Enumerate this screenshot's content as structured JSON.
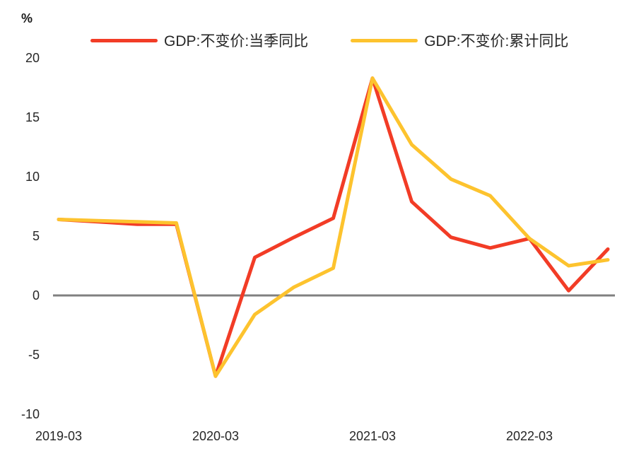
{
  "header": {
    "unit_label": "%"
  },
  "chart_data": {
    "type": "line",
    "x": [
      "2019-03",
      "2019-06",
      "2019-09",
      "2019-12",
      "2020-03",
      "2020-06",
      "2020-09",
      "2020-12",
      "2021-03",
      "2021-06",
      "2021-09",
      "2021-12",
      "2022-03",
      "2022-06",
      "2022-09"
    ],
    "series": [
      {
        "name": "GDP:不变价:当季同比",
        "color": "#F23C26",
        "values": [
          6.4,
          6.2,
          6.0,
          6.0,
          -6.8,
          3.2,
          4.9,
          6.5,
          18.3,
          7.9,
          4.9,
          4.0,
          4.8,
          0.4,
          3.9
        ]
      },
      {
        "name": "GDP:不变价:累计同比",
        "color": "#FDC32E",
        "values": [
          6.4,
          6.3,
          6.2,
          6.1,
          -6.8,
          -1.6,
          0.7,
          2.3,
          18.3,
          12.7,
          9.8,
          8.4,
          4.8,
          2.5,
          3.0
        ]
      }
    ],
    "ylabel": "%",
    "ylim": [
      -10,
      20
    ],
    "yticks": [
      20,
      15,
      10,
      5,
      0,
      -5,
      -10
    ],
    "xtick_labels": [
      "2019-03",
      "2020-03",
      "2021-03",
      "2022-03"
    ],
    "grid": false,
    "legend_position": "top",
    "zero_line_color": "#808080",
    "text_color": "#262626"
  }
}
